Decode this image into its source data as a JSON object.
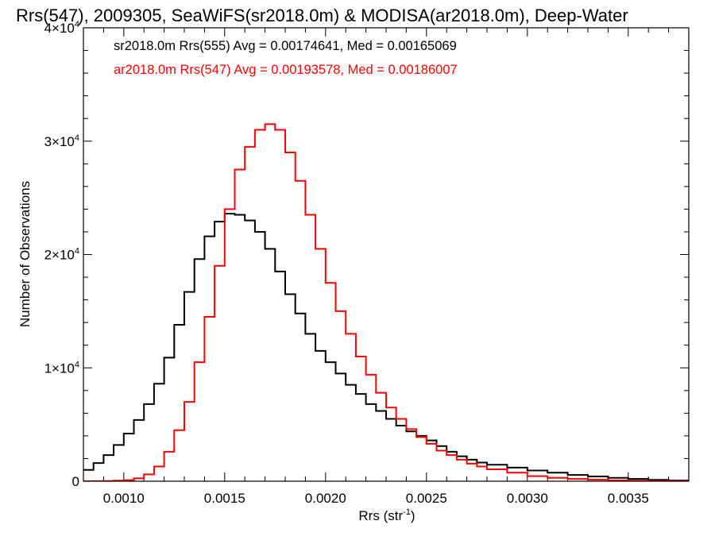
{
  "chart_data": {
    "type": "line",
    "title": "Rrs(547), 2009305, SeaWiFS(sr2018.0m) & MODISA(ar2018.0m), Deep-Water",
    "xlabel": "Rrs (str",
    "xlabel_sup": "-1",
    "xlabel_end": ")",
    "ylabel": "Number of Observations",
    "xlim": [
      0.0008,
      0.0038
    ],
    "ylim": [
      0,
      40000
    ],
    "x_ticks": [
      {
        "value": 0.001,
        "label": "0.0010"
      },
      {
        "value": 0.0015,
        "label": "0.0015"
      },
      {
        "value": 0.002,
        "label": "0.0020"
      },
      {
        "value": 0.0025,
        "label": "0.0025"
      },
      {
        "value": 0.003,
        "label": "0.0030"
      },
      {
        "value": 0.0035,
        "label": "0.0035"
      }
    ],
    "y_ticks": [
      {
        "value": 0,
        "label": "0",
        "exp": ""
      },
      {
        "value": 10000,
        "label": "1×10",
        "exp": "4"
      },
      {
        "value": 20000,
        "label": "2×10",
        "exp": "4"
      },
      {
        "value": 30000,
        "label": "3×10",
        "exp": "4"
      },
      {
        "value": 40000,
        "label": "4×10",
        "exp": "4"
      }
    ],
    "grid": false,
    "step": true,
    "series": [
      {
        "name": "sr2018.0m Rrs(555)",
        "legend": "sr2018.0m Rrs(555) Avg = 0.00174641, Med = 0.00165069",
        "color": "#000000",
        "x": [
          0.0008,
          0.00085,
          0.0009,
          0.00095,
          0.001,
          0.00105,
          0.0011,
          0.00115,
          0.0012,
          0.00125,
          0.0013,
          0.00135,
          0.0014,
          0.00145,
          0.0015,
          0.00155,
          0.0016,
          0.00165,
          0.0017,
          0.00175,
          0.0018,
          0.00185,
          0.0019,
          0.00195,
          0.002,
          0.00205,
          0.0021,
          0.00215,
          0.0022,
          0.00225,
          0.0023,
          0.00235,
          0.0024,
          0.00245,
          0.0025,
          0.00255,
          0.0026,
          0.00265,
          0.0027,
          0.00275,
          0.0028,
          0.0029,
          0.003,
          0.0031,
          0.0032,
          0.0033,
          0.0034,
          0.0035,
          0.0036,
          0.0037,
          0.0038
        ],
        "y": [
          1000,
          1600,
          2300,
          3200,
          4200,
          5400,
          6800,
          8600,
          10900,
          13800,
          16700,
          19600,
          21600,
          22900,
          23600,
          23500,
          23000,
          22000,
          20500,
          18500,
          16500,
          14800,
          13000,
          11500,
          10500,
          9500,
          8500,
          7700,
          6800,
          6200,
          5500,
          4900,
          4400,
          4000,
          3600,
          3100,
          2600,
          2200,
          1900,
          1650,
          1450,
          1200,
          950,
          750,
          550,
          420,
          300,
          200,
          120,
          60,
          40
        ]
      },
      {
        "name": "ar2018.0m Rrs(547)",
        "legend": "ar2018.0m Rrs(547) Avg = 0.00193578, Med = 0.00186007",
        "color": "#ff0000",
        "x": [
          0.0008,
          0.00085,
          0.0009,
          0.00095,
          0.001,
          0.00105,
          0.0011,
          0.00115,
          0.0012,
          0.00125,
          0.0013,
          0.00135,
          0.0014,
          0.00145,
          0.0015,
          0.00155,
          0.0016,
          0.00165,
          0.0017,
          0.00175,
          0.0018,
          0.00185,
          0.0019,
          0.00195,
          0.002,
          0.00205,
          0.0021,
          0.00215,
          0.0022,
          0.00225,
          0.0023,
          0.00235,
          0.0024,
          0.00245,
          0.0025,
          0.00255,
          0.0026,
          0.00265,
          0.0027,
          0.00275,
          0.0028,
          0.0029,
          0.003,
          0.0031,
          0.0032,
          0.0033,
          0.0034,
          0.0035,
          0.0036,
          0.0037,
          0.0038
        ],
        "y": [
          0,
          10,
          20,
          50,
          100,
          250,
          600,
          1300,
          2600,
          4500,
          7000,
          10500,
          14500,
          19000,
          24000,
          27500,
          29500,
          31000,
          31500,
          31000,
          29000,
          26500,
          23500,
          20500,
          17500,
          15000,
          13000,
          11000,
          9400,
          7800,
          6500,
          5500,
          4600,
          3900,
          3300,
          2700,
          2300,
          1900,
          1550,
          1300,
          1050,
          750,
          450,
          300,
          200,
          130,
          80,
          45,
          25,
          15,
          10
        ]
      }
    ]
  }
}
